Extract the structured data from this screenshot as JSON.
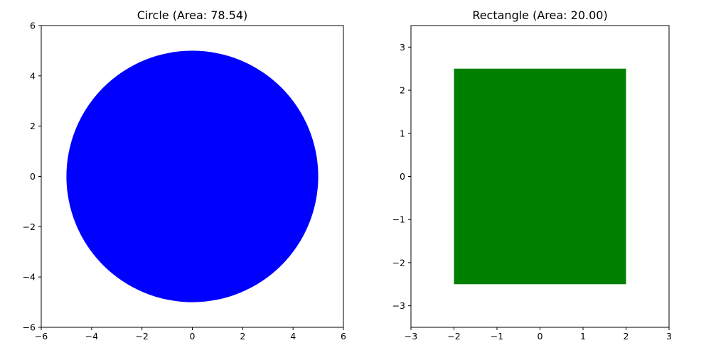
{
  "chart_data": [
    {
      "type": "shape",
      "shape": "circle",
      "title": "Circle (Area: 78.54)",
      "xlim": [
        -6,
        6
      ],
      "ylim": [
        -6,
        6
      ],
      "xticks": [
        -6,
        -4,
        -2,
        0,
        2,
        4,
        6
      ],
      "yticks": [
        -6,
        -4,
        -2,
        0,
        2,
        4,
        6
      ],
      "center": [
        0,
        0
      ],
      "radius": 5,
      "color": "#0000ff",
      "grid": false
    },
    {
      "type": "shape",
      "shape": "rectangle",
      "title": "Rectangle (Area: 20.00)",
      "xlim": [
        -3,
        3
      ],
      "ylim": [
        -3.5,
        3.5
      ],
      "xticks": [
        -3,
        -2,
        -1,
        0,
        1,
        2,
        3
      ],
      "yticks": [
        -3,
        -2,
        -1,
        0,
        1,
        2,
        3
      ],
      "x_range": [
        -2,
        2
      ],
      "y_range": [
        -2.5,
        2.5
      ],
      "color": "#008000",
      "grid": false
    }
  ]
}
